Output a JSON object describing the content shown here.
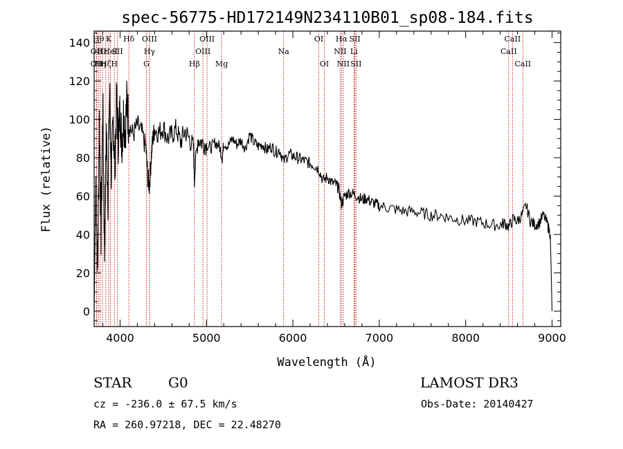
{
  "title": "spec-56775-HD172149N234110B01_sp08-184.fits",
  "object_type": "STAR",
  "subclass": "G0",
  "survey": "LAMOST DR3",
  "cz_text": "cz = -236.0 ± 67.5 km/s",
  "obs_date_text": "Obs-Date: 20140427",
  "coords_text": "RA = 260.97218, DEC =  22.48270",
  "chart_data": {
    "type": "line",
    "title": "spec-56775-HD172149N234110B01_sp08-184.fits",
    "xlabel": "Wavelength (Å)",
    "ylabel": "Flux (relative)",
    "xlim": [
      3700,
      9100
    ],
    "ylim": [
      -8,
      146
    ],
    "xticks": [
      4000,
      5000,
      6000,
      7000,
      8000,
      9000
    ],
    "yticks": [
      0,
      20,
      40,
      60,
      80,
      100,
      120,
      140
    ],
    "spectrum_x": [
      3700,
      3720,
      3740,
      3760,
      3780,
      3800,
      3820,
      3840,
      3860,
      3880,
      3900,
      3920,
      3940,
      3960,
      3980,
      4000,
      4020,
      4040,
      4060,
      4080,
      4100,
      4150,
      4200,
      4250,
      4300,
      4320,
      4340,
      4360,
      4380,
      4400,
      4450,
      4500,
      4550,
      4600,
      4650,
      4700,
      4750,
      4800,
      4850,
      4861,
      4900,
      4950,
      5000,
      5050,
      5100,
      5150,
      5183,
      5200,
      5250,
      5300,
      5350,
      5400,
      5450,
      5500,
      5550,
      5600,
      5650,
      5700,
      5750,
      5800,
      5850,
      5893,
      5950,
      6000,
      6050,
      6100,
      6150,
      6200,
      6250,
      6300,
      6350,
      6400,
      6450,
      6500,
      6530,
      6563,
      6600,
      6650,
      6700,
      6750,
      6800,
      6850,
      6900,
      6950,
      7000,
      7100,
      7200,
      7300,
      7400,
      7500,
      7600,
      7700,
      7800,
      7900,
      8000,
      8100,
      8200,
      8300,
      8400,
      8450,
      8500,
      8550,
      8600,
      8650,
      8700,
      8750,
      8800,
      8850,
      8900,
      8950,
      8980,
      9000
    ],
    "spectrum_y": [
      0,
      70,
      20,
      100,
      40,
      110,
      30,
      95,
      60,
      115,
      70,
      100,
      75,
      110,
      90,
      105,
      88,
      102,
      95,
      110,
      98,
      92,
      97,
      93,
      85,
      70,
      65,
      80,
      90,
      95,
      93,
      96,
      90,
      92,
      95,
      88,
      94,
      90,
      85,
      70,
      90,
      88,
      87,
      85,
      88,
      86,
      80,
      88,
      86,
      90,
      87,
      89,
      85,
      92,
      88,
      86,
      87,
      84,
      86,
      83,
      84,
      78,
      82,
      81,
      80,
      79,
      78,
      77,
      76,
      74,
      68,
      70,
      67,
      66,
      64,
      56,
      60,
      62,
      61,
      60,
      58,
      59,
      57,
      56,
      55,
      54,
      53,
      52,
      52,
      51,
      50,
      50,
      49,
      48,
      47,
      47,
      46,
      45,
      45,
      46,
      44,
      48,
      47,
      50,
      55,
      47,
      45,
      46,
      50,
      45,
      40,
      0
    ],
    "lines": [
      {
        "name": "OII",
        "wave": 3727,
        "row": 2
      },
      {
        "name": "OII",
        "wave": 3729,
        "row": 1
      },
      {
        "name": "Hθ",
        "wave": 3750,
        "row": 0
      },
      {
        "name": "Hη",
        "wave": 3771,
        "row": 2
      },
      {
        "name": "Hε",
        "wave": 3797,
        "row": 1
      },
      {
        "name": "Hζ",
        "wave": 3835,
        "row": 2
      },
      {
        "name": "K",
        "wave": 3869,
        "row": 0
      },
      {
        "name": "HeI",
        "wave": 3889,
        "row": 1
      },
      {
        "name": "H",
        "wave": 3934,
        "row": 2
      },
      {
        "name": "SII",
        "wave": 3969,
        "row": 1
      },
      {
        "name": "Hδ",
        "wave": 4102,
        "row": 0
      },
      {
        "name": "G",
        "wave": 4305,
        "row": 2
      },
      {
        "name": "OIII",
        "wave": 4341,
        "row": 0
      },
      {
        "name": "Hγ",
        "wave": 4341,
        "row": 1
      },
      {
        "name": "Hβ",
        "wave": 4861,
        "row": 2
      },
      {
        "name": "OIII",
        "wave": 4959,
        "row": 1
      },
      {
        "name": "OIII",
        "wave": 5007,
        "row": 0
      },
      {
        "name": "Mg",
        "wave": 5175,
        "row": 2
      },
      {
        "name": "Na",
        "wave": 5893,
        "row": 1
      },
      {
        "name": "OI",
        "wave": 6300,
        "row": 0
      },
      {
        "name": "OI",
        "wave": 6364,
        "row": 2
      },
      {
        "name": "Hα",
        "wave": 6563,
        "row": 0
      },
      {
        "name": "NII",
        "wave": 6548,
        "row": 1
      },
      {
        "name": "NII",
        "wave": 6584,
        "row": 2
      },
      {
        "name": "SII",
        "wave": 6717,
        "row": 0
      },
      {
        "name": "Li",
        "wave": 6707,
        "row": 1
      },
      {
        "name": "SII",
        "wave": 6731,
        "row": 2
      },
      {
        "name": "CaII",
        "wave": 8498,
        "row": 1
      },
      {
        "name": "CaII",
        "wave": 8542,
        "row": 0
      },
      {
        "name": "CaII",
        "wave": 8662,
        "row": 2
      }
    ]
  }
}
